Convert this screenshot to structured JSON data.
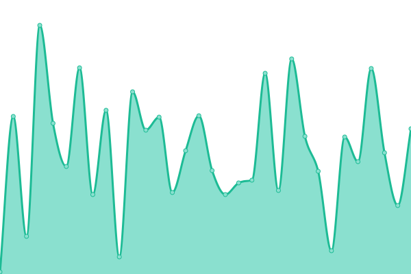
{
  "chart_data": {
    "type": "area",
    "title": "",
    "xlabel": "",
    "ylabel": "",
    "x": [
      0,
      1,
      2,
      3,
      4,
      5,
      6,
      7,
      8,
      9,
      10,
      11,
      12,
      13,
      14,
      15,
      16,
      17,
      18,
      19,
      20,
      21,
      22,
      23,
      24,
      25,
      26,
      27,
      28,
      29,
      30,
      31
    ],
    "values": [
      3,
      230,
      55,
      363,
      220,
      157,
      301,
      116,
      239,
      25,
      266,
      210,
      229,
      119,
      180,
      231,
      151,
      116,
      133,
      137,
      293,
      122,
      314,
      201,
      150,
      34,
      200,
      164,
      300,
      177,
      100,
      212
    ],
    "ylim": [
      0,
      400
    ],
    "grid": false,
    "axes_visible": false,
    "curve": "smooth",
    "markers": true,
    "colors": {
      "line": "#1dbb95",
      "fill": "#8ae0cf",
      "marker_fill": "#8ae0cf",
      "marker_stroke": "#1dbb95"
    }
  }
}
